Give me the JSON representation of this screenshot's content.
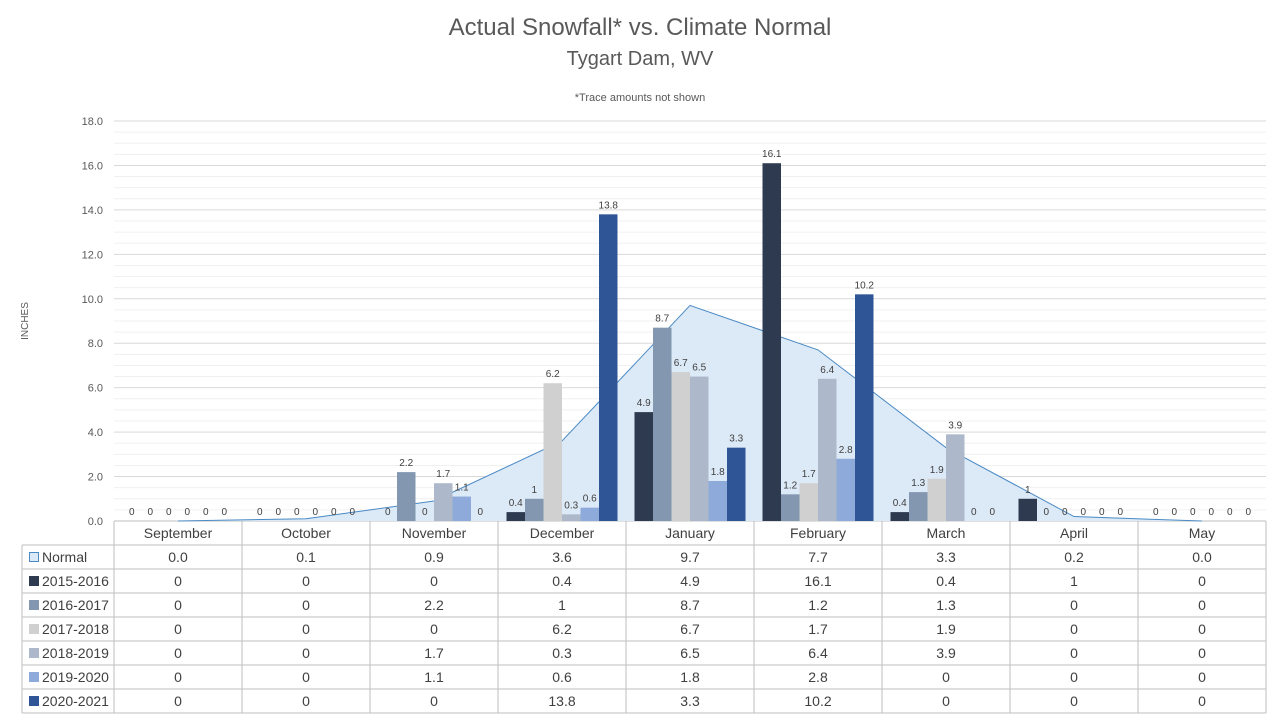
{
  "chart_data": {
    "type": "bar",
    "title": "Actual Snowfall* vs. Climate Normal",
    "subtitle": "Tygart Dam, WV",
    "note": "*Trace amounts not shown",
    "ylabel": "INCHES",
    "ylim": [
      0,
      18
    ],
    "yticks": [
      "0.0",
      "2.0",
      "4.0",
      "6.0",
      "8.0",
      "10.0",
      "12.0",
      "14.0",
      "16.0",
      "18.0"
    ],
    "categories": [
      "September",
      "October",
      "November",
      "December",
      "January",
      "February",
      "March",
      "April",
      "May"
    ],
    "normal": {
      "name": "Normal",
      "type": "area",
      "values": [
        0.0,
        0.1,
        0.9,
        3.6,
        9.7,
        7.7,
        3.3,
        0.2,
        0.0
      ],
      "table_values": [
        "0.0",
        "0.1",
        "0.9",
        "3.6",
        "9.7",
        "7.7",
        "3.3",
        "0.2",
        "0.0"
      ],
      "fill": "#dce9f6",
      "stroke": "#4a8ac4"
    },
    "series": [
      {
        "name": "2015-2016",
        "color": "#2e3a4f",
        "values": [
          0,
          0,
          0,
          0.4,
          4.9,
          16.1,
          0.4,
          1,
          0
        ]
      },
      {
        "name": "2016-2017",
        "color": "#8497b0",
        "values": [
          0,
          0,
          2.2,
          1,
          8.7,
          1.2,
          1.3,
          0,
          0
        ]
      },
      {
        "name": "2017-2018",
        "color": "#d0d0d0",
        "values": [
          0,
          0,
          0,
          6.2,
          6.7,
          1.7,
          1.9,
          0,
          0
        ]
      },
      {
        "name": "2018-2019",
        "color": "#adb9ca",
        "values": [
          0,
          0,
          1.7,
          0.3,
          6.5,
          6.4,
          3.9,
          0,
          0
        ]
      },
      {
        "name": "2019-2020",
        "color": "#8eaadb",
        "values": [
          0,
          0,
          1.1,
          0.6,
          1.8,
          2.8,
          0,
          0,
          0
        ]
      },
      {
        "name": "2020-2021",
        "color": "#2f5597",
        "values": [
          0,
          0,
          0,
          13.8,
          3.3,
          10.2,
          0,
          0,
          0
        ]
      }
    ],
    "grid": true,
    "legend": "data-table"
  }
}
